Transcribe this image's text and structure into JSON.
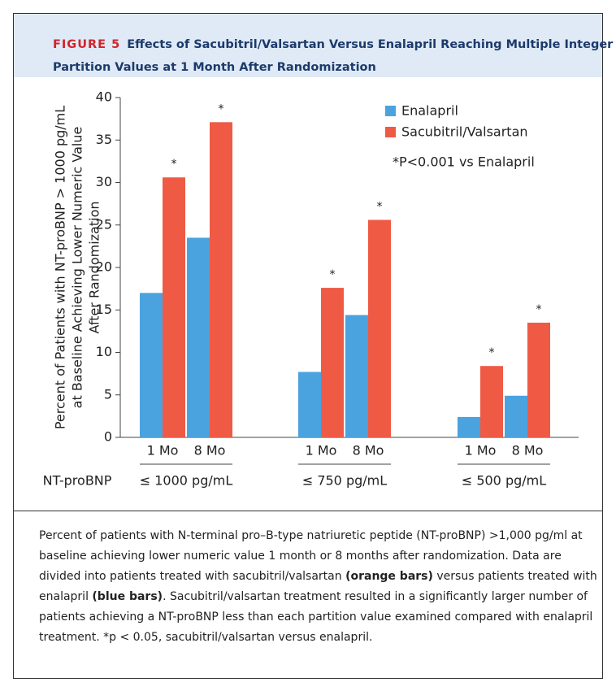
{
  "header": {
    "label": "FIGURE 5",
    "title": "Effects of Sacubitril/Valsartan Versus Enalapril Reaching Multiple Integer Partition Values at 1 Month After Randomization"
  },
  "chart_data": {
    "type": "bar",
    "y_label": [
      "Percent of Patients with NT-proBNP > 1000 pg/mL",
      "at Baseline Achieving Lower Numeric Value",
      "After Randomization"
    ],
    "categories": [
      "1 Mo",
      "8 Mo",
      "1 Mo",
      "8 Mo",
      "1 Mo",
      "8 Mo"
    ],
    "group_axis_label": "NT-proBNP",
    "groups": [
      "≤ 1000 pg/mL",
      "≤ 750 pg/mL",
      "≤ 500 pg/mL"
    ],
    "series": [
      {
        "name": "Enalapril",
        "color": "#4aa3df",
        "values": [
          17.0,
          23.5,
          7.7,
          14.4,
          2.4,
          4.9
        ]
      },
      {
        "name": "Sacubitril/Valsartan",
        "color": "#ef5a45",
        "values": [
          30.6,
          37.1,
          17.6,
          25.6,
          8.4,
          13.5
        ]
      }
    ],
    "significance_label": "*",
    "annotation": "*P<0.001 vs Enalapril",
    "ylim": [
      0,
      40
    ],
    "yticks": [
      0,
      5,
      10,
      15,
      20,
      25,
      30,
      35,
      40
    ]
  },
  "caption": [
    "Percent of patients with N-terminal pro–B-type natriuretic peptide (NT-proBNP) >1,000 pg/ml at baseline achieving lower numeric value 1 month or 8 months after randomization. Data are divided into patients treated with sacubitril/valsartan ",
    "(orange bars)",
    " versus patients treated with enalapril ",
    "(blue bars)",
    ". Sacubitril/valsartan treatment resulted in a significantly larger number of patients achieving a NT-proBNP less than each partition value examined compared with enalapril treatment. *p < 0.05, sacubitril/valsartan versus enalapril."
  ]
}
